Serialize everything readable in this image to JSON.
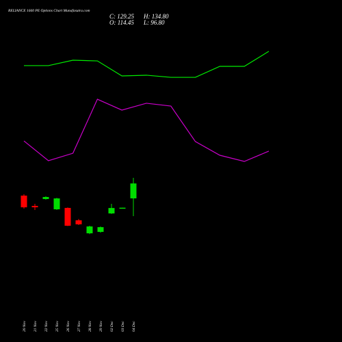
{
  "chart_data": {
    "type": "candlestick",
    "title": "RELIANCE 1660 PE Options Chart Munafasutra.com",
    "info": [
      "C: 129.25",
      "H: 134.80",
      "O: 114.45",
      "L: 96.80"
    ],
    "categories": [
      "20 Nov",
      "21 Nov",
      "22 Nov",
      "25 Nov",
      "26 Nov",
      "27 Nov",
      "28 Nov",
      "29 Nov",
      "02 Dec",
      "03 Dec",
      "04 Dec"
    ],
    "open": [
      117.2,
      107.0,
      113.8,
      103.6,
      105.0,
      92.7,
      79.8,
      81.2,
      99.5,
      104.9,
      114.45
    ],
    "high": [
      118.5,
      109.0,
      116.5,
      115.0,
      105.5,
      94.0,
      87.3,
      86.6,
      109.0,
      105.2,
      134.8
    ],
    "low": [
      104.3,
      102.9,
      113.2,
      103.0,
      87.0,
      88.0,
      79.0,
      80.5,
      99.0,
      104.9,
      96.8
    ],
    "close": [
      105.6,
      105.6,
      115.8,
      114.4,
      87.3,
      88.7,
      86.6,
      85.9,
      104.9,
      105.2,
      129.25
    ],
    "up_color": "#00dd00",
    "down_color": "#ff0000",
    "lines": [
      {
        "color": "#00ee00",
        "values": [
          246.1,
          246.1,
          251.5,
          250.8,
          235.9,
          236.6,
          234.5,
          234.5,
          245.4,
          245.4,
          260.3
        ]
      },
      {
        "color": "#cc00cc",
        "values": [
          171.4,
          151.8,
          159.2,
          212.8,
          202.0,
          208.8,
          206.0,
          170.8,
          157.2,
          151.1,
          161.3
        ]
      }
    ],
    "ylim": [
      -28.0,
      311.2
    ]
  }
}
